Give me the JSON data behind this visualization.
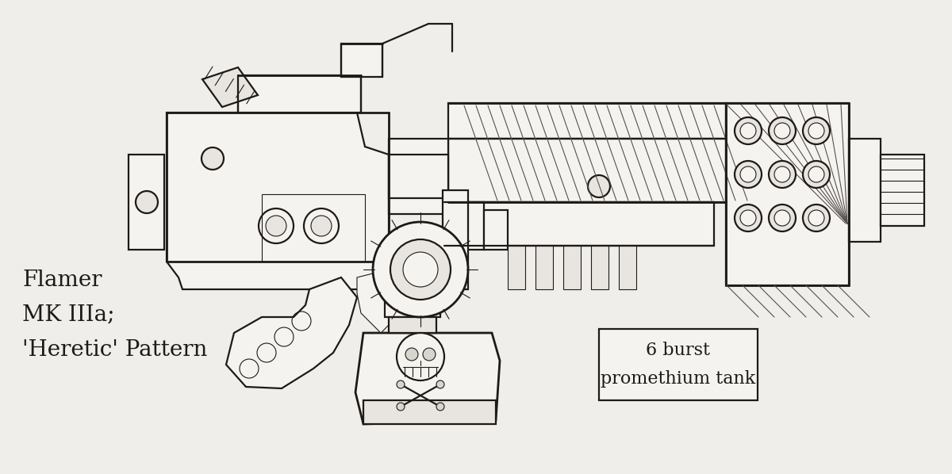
{
  "bg_color": "#f0eeeb",
  "line_color": "#2a2520",
  "sketch_color": "#1e1a15",
  "title_lines": [
    "Flamer",
    "MK IIIa;",
    "'Heretic' Pattern"
  ],
  "label_lines": [
    "6 burst",
    "promethium tank"
  ],
  "title_fontsize": 20,
  "label_fontsize": 16,
  "lw_main": 1.6,
  "lw_thin": 0.8,
  "lw_thick": 2.0
}
